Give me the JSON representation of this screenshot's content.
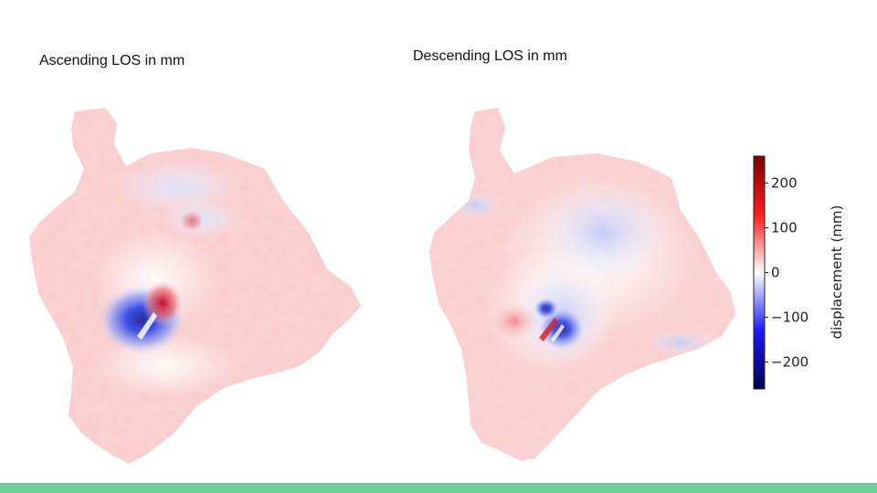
{
  "panels": {
    "ascending_title": "Ascending LOS in mm",
    "descending_title": "Descending LOS in mm"
  },
  "colorbar": {
    "label": "displacement (mm)",
    "ticks": [
      "200",
      "100",
      "0",
      "−100",
      "−200"
    ],
    "tick_values": [
      200,
      100,
      0,
      -100,
      -200
    ],
    "range": [
      -260,
      260
    ],
    "colormap": "seismic",
    "color_low": "#00004c",
    "color_mid": "#ffffff",
    "color_high": "#7f0000"
  },
  "colors": {
    "footer_accent": "#6fcf97"
  }
}
